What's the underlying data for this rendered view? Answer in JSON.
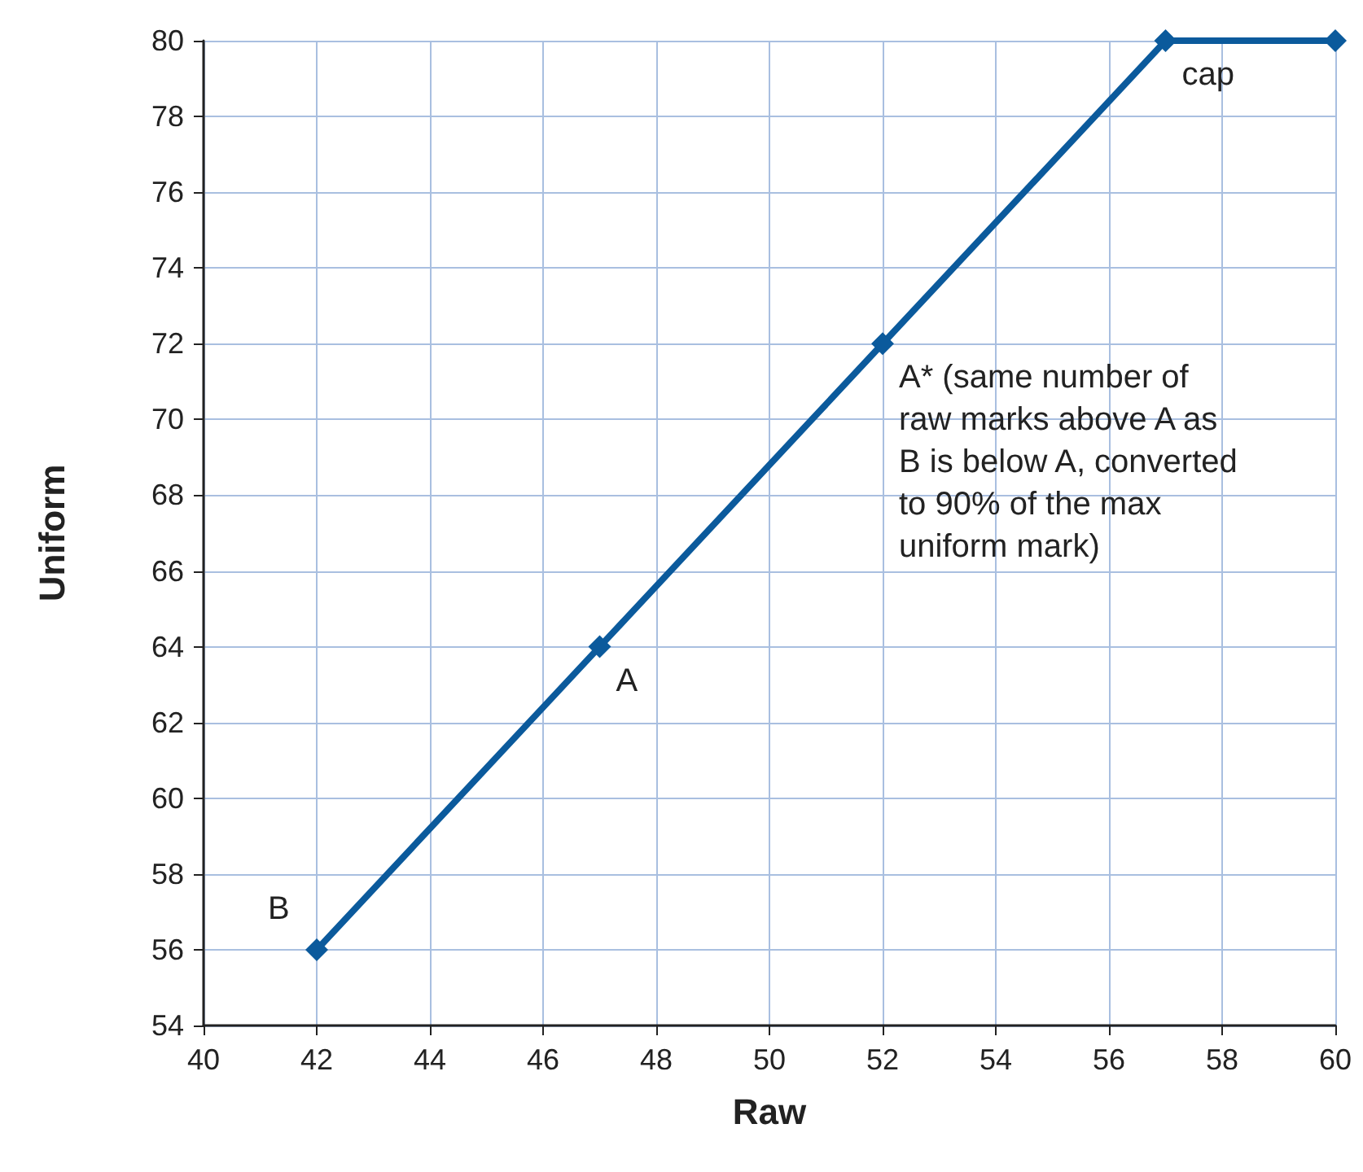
{
  "chart_data": {
    "type": "line",
    "xlabel": "Raw",
    "ylabel": "Uniform",
    "x": [
      42,
      47,
      52,
      57,
      60
    ],
    "series": [
      {
        "color": "#0b5a9c",
        "values": [
          56,
          64,
          72,
          80,
          80
        ]
      }
    ],
    "xlim": [
      40,
      60
    ],
    "xticks": [
      40,
      42,
      44,
      46,
      48,
      50,
      52,
      54,
      56,
      58,
      60
    ],
    "ylim": [
      54,
      80
    ],
    "yticks": [
      54,
      56,
      58,
      60,
      62,
      64,
      66,
      68,
      70,
      72,
      74,
      76,
      78,
      80
    ],
    "grid": true,
    "marker": "diamond",
    "line_style": "solid",
    "annotations": [
      {
        "text": "B",
        "x": 42,
        "y": 56
      },
      {
        "text": "A",
        "x": 47,
        "y": 64
      },
      {
        "text": "A* (same number of raw marks above A as B is below A, converted to 90% of the max uniform mark)",
        "x": 52,
        "y": 72
      },
      {
        "text": "cap",
        "x": 57,
        "y": 80
      }
    ]
  }
}
